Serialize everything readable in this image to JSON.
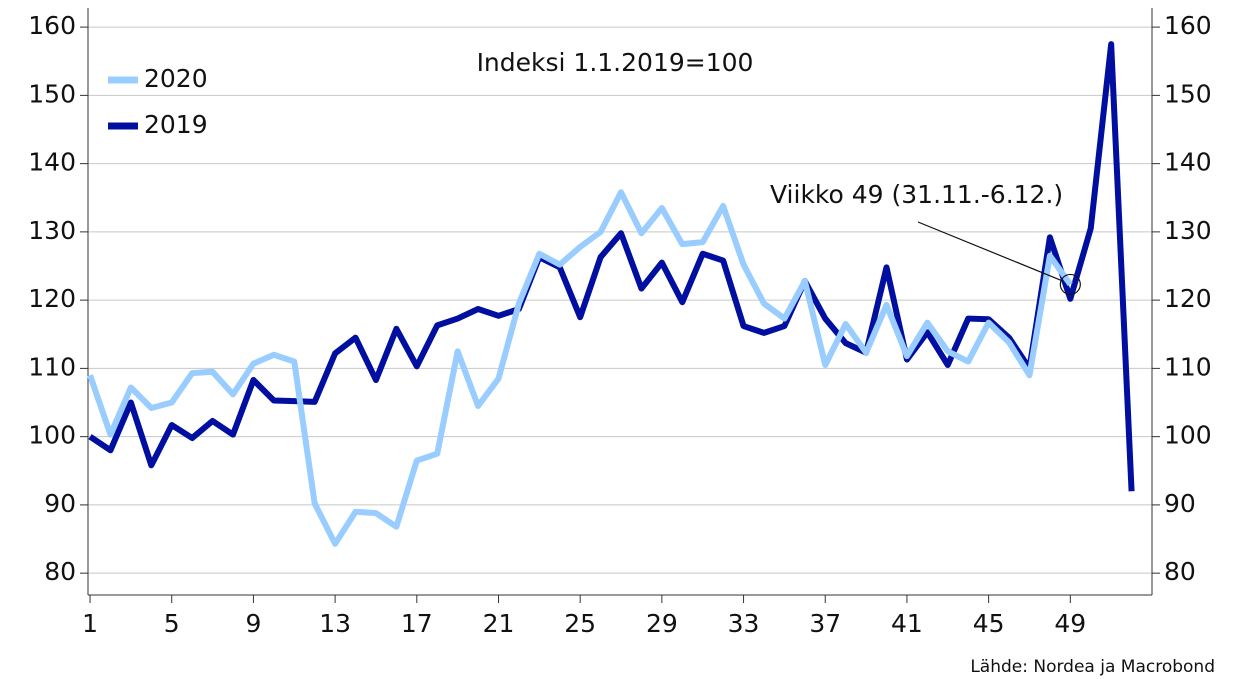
{
  "chart_data": {
    "type": "line",
    "subtitle": "Indeksi 1.1.2019=100",
    "annotation": "Viikko 49 (31.11.-6.12.)",
    "source": "Lähde: Nordea ja Macrobond",
    "x": [
      1,
      2,
      3,
      4,
      5,
      6,
      7,
      8,
      9,
      10,
      11,
      12,
      13,
      14,
      15,
      16,
      17,
      18,
      19,
      20,
      21,
      22,
      23,
      24,
      25,
      26,
      27,
      28,
      29,
      30,
      31,
      32,
      33,
      34,
      35,
      36,
      37,
      38,
      39,
      40,
      41,
      42,
      43,
      44,
      45,
      46,
      47,
      48,
      49,
      50,
      51,
      52
    ],
    "series": [
      {
        "name": "2020",
        "color": "#99ccff",
        "values": [
          109,
          100.3,
          107.2,
          104.2,
          105,
          109.3,
          109.5,
          106.2,
          110.7,
          112,
          111,
          90.2,
          84.3,
          89,
          88.8,
          86.8,
          96.5,
          97.5,
          112.5,
          104.5,
          108.5,
          119.5,
          126.8,
          125.2,
          127.8,
          130,
          135.8,
          129.8,
          133.5,
          128.2,
          128.5,
          133.8,
          125.2,
          119.5,
          117.3,
          122.8,
          110.5,
          116.5,
          112.3,
          119.3,
          111.8,
          116.7,
          112.5,
          111,
          116.7,
          113.8,
          109,
          126.5,
          122.3,
          null,
          null,
          null
        ]
      },
      {
        "name": "2019",
        "color": "#000f9f",
        "values": [
          100,
          98,
          105,
          95.8,
          101.7,
          99.8,
          102.3,
          100.3,
          108.3,
          105.3,
          105.2,
          105.1,
          112.2,
          114.5,
          108.3,
          115.8,
          110.3,
          116.3,
          117.3,
          118.7,
          117.7,
          118.7,
          126.3,
          124.8,
          117.5,
          126.3,
          129.8,
          121.7,
          125.5,
          119.7,
          126.8,
          125.8,
          116.2,
          115.2,
          116.2,
          122.8,
          117.3,
          113.7,
          112.3,
          124.8,
          111.3,
          115.3,
          110.5,
          117.3,
          117.2,
          114.5,
          110,
          129.2,
          120.2,
          130.5,
          157.5,
          92
        ]
      }
    ],
    "xlim": [
      0.9,
      53
    ],
    "xticks": [
      1,
      5,
      9,
      13,
      17,
      21,
      25,
      29,
      33,
      37,
      41,
      45,
      49
    ],
    "ylim": [
      76.8,
      162.8
    ],
    "yticks": [
      80,
      90,
      100,
      110,
      120,
      130,
      140,
      150,
      160
    ],
    "y2lim": [
      76.8,
      162.8
    ],
    "y2ticks": [
      80,
      90,
      100,
      110,
      120,
      130,
      140,
      150,
      160
    ],
    "grid": true,
    "legend": "upper left",
    "annotation_week_index": 48
  }
}
